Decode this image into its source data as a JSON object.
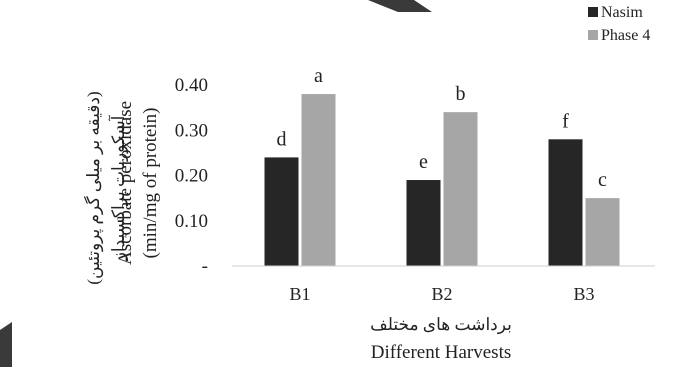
{
  "chart_data": {
    "type": "bar",
    "categories": [
      "B1",
      "B2",
      "B3"
    ],
    "series": [
      {
        "name": "Nasim",
        "values": [
          0.24,
          0.19,
          0.28
        ],
        "letters": [
          "d",
          "e",
          "f"
        ],
        "color": "#262626"
      },
      {
        "name": "Phase 4",
        "values": [
          0.38,
          0.34,
          0.15
        ],
        "letters": [
          "a",
          "b",
          "c"
        ],
        "color": "#a6a6a6"
      }
    ],
    "yticks": [
      "-",
      "0.10",
      "0.20",
      "0.30",
      "0.40"
    ],
    "ylim": [
      0,
      0.4
    ],
    "ylabel_lines": [
      "آسکوربات پراکسیداز",
      "(دقیقه بر میلی گرم پروتئین)",
      "Ascorbate peroxidase",
      "(min/mg of protein)"
    ],
    "xlabel_lines": [
      "برداشت های مختلف",
      "Different Harvests"
    ],
    "legend_position": "top-right",
    "grid": false
  }
}
